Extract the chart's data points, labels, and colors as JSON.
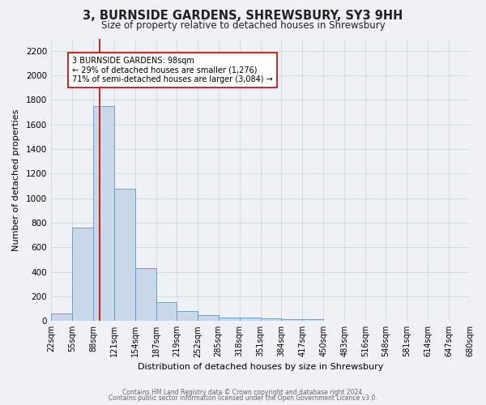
{
  "title": "3, BURNSIDE GARDENS, SHREWSBURY, SY3 9HH",
  "subtitle": "Size of property relative to detached houses in Shrewsbury",
  "xlabel": "Distribution of detached houses by size in Shrewsbury",
  "ylabel": "Number of detached properties",
  "bin_edges": [
    22,
    55,
    88,
    121,
    154,
    187,
    219,
    252,
    285,
    318,
    351,
    384,
    417,
    450,
    483,
    516,
    548,
    581,
    614,
    647,
    680
  ],
  "bin_labels": [
    "22sqm",
    "55sqm",
    "88sqm",
    "121sqm",
    "154sqm",
    "187sqm",
    "219sqm",
    "252sqm",
    "285sqm",
    "318sqm",
    "351sqm",
    "384sqm",
    "417sqm",
    "450sqm",
    "483sqm",
    "516sqm",
    "548sqm",
    "581sqm",
    "614sqm",
    "647sqm",
    "680sqm"
  ],
  "counts": [
    60,
    760,
    1750,
    1075,
    430,
    155,
    80,
    45,
    30,
    25,
    20,
    15,
    15,
    0,
    0,
    0,
    0,
    0,
    0,
    0
  ],
  "bar_color": "#c8d8e8",
  "bar_edge_color": "#5a9abf",
  "vline_x": 98,
  "vline_color": "#cc0000",
  "annotation_line1": "3 BURNSIDE GARDENS: 98sqm",
  "annotation_line2": "← 29% of detached houses are smaller (1,276)",
  "annotation_line3": "71% of semi-detached houses are larger (3,084) →",
  "annotation_box_color": "#ffffff",
  "annotation_box_edge": "#cc0000",
  "ylim": [
    0,
    2300
  ],
  "yticks": [
    0,
    200,
    400,
    600,
    800,
    1000,
    1200,
    1400,
    1600,
    1800,
    2000,
    2200
  ],
  "footer1": "Contains HM Land Registry data © Crown copyright and database right 2024.",
  "footer2": "Contains public sector information licensed under the Open Government Licence v3.0.",
  "background_color": "#eef2f7",
  "grid_color": "#d0d8e0",
  "title_fontsize": 10.5,
  "subtitle_fontsize": 8.5,
  "xlabel_fontsize": 8,
  "ylabel_fontsize": 8,
  "tick_fontsize": 7,
  "ytick_fontsize": 7.5,
  "footer_fontsize": 5.5
}
